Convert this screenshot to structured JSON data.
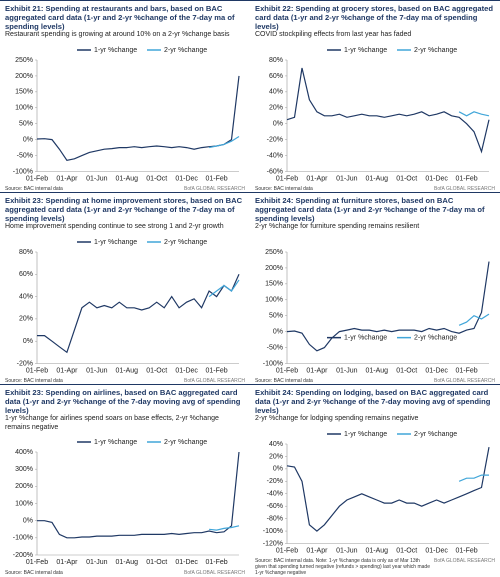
{
  "chart_data": [
    {
      "type": "line",
      "title": "Exhibit 21: Spending at restaurants and bars, based on BAC aggregated card data (1-yr and 2-yr %change of the 7-day ma of spending levels)",
      "subtitle": "Restaurant spending is growing at around 10% on a 2-yr %change basis",
      "source": "Source: BAC internal data",
      "brand": "BofA GLOBAL RESEARCH",
      "legend": "top",
      "categories": [
        "01-Feb",
        null,
        null,
        null,
        "01-Apr",
        null,
        null,
        null,
        "01-Jun",
        null,
        null,
        null,
        "01-Aug",
        null,
        null,
        null,
        "01-Oct",
        null,
        null,
        null,
        "01-Dec",
        null,
        null,
        null,
        "01-Feb",
        null,
        null,
        null
      ],
      "ylim": [
        -100,
        250
      ],
      "yticks": [
        {
          "value": -100,
          "label": "-100%"
        },
        {
          "value": -50,
          "label": "-50%"
        },
        {
          "value": 0,
          "label": "0%"
        },
        {
          "value": 50,
          "label": "50%"
        },
        {
          "value": 100,
          "label": "100%"
        },
        {
          "value": 150,
          "label": "150%"
        },
        {
          "value": 200,
          "label": "200%"
        },
        {
          "value": 250,
          "label": "250%"
        }
      ],
      "series": [
        {
          "name": "1-yr %change",
          "color": "#1f3864",
          "values": [
            2,
            3,
            0,
            -30,
            -65,
            -60,
            -50,
            -40,
            -35,
            -30,
            -28,
            -25,
            -25,
            -22,
            -25,
            -22,
            -20,
            -22,
            -25,
            -22,
            -25,
            -30,
            -25,
            -22,
            -20,
            -15,
            0,
            200
          ]
        },
        {
          "name": "2-yr %change",
          "color": "#41a6d9",
          "values": [
            null,
            null,
            null,
            null,
            null,
            null,
            null,
            null,
            null,
            null,
            null,
            null,
            null,
            null,
            null,
            null,
            null,
            null,
            null,
            null,
            null,
            null,
            null,
            -25,
            -20,
            -15,
            -5,
            10
          ]
        }
      ]
    },
    {
      "type": "line",
      "title": "Exhibit 22: Spending at grocery stores, based on BAC aggregated card data (1-yr and 2-yr %change of the 7-day ma of spending levels)",
      "subtitle": "COVID stockpiling effects from last year has faded",
      "source": "Source: BAC internal data",
      "brand": "BofA GLOBAL RESEARCH",
      "legend": "top",
      "categories": [
        "01-Feb",
        null,
        null,
        null,
        "01-Apr",
        null,
        null,
        null,
        "01-Jun",
        null,
        null,
        null,
        "01-Aug",
        null,
        null,
        null,
        "01-Oct",
        null,
        null,
        null,
        "01-Dec",
        null,
        null,
        null,
        "01-Feb",
        null,
        null,
        null
      ],
      "ylim": [
        -60,
        80
      ],
      "yticks": [
        {
          "value": -60,
          "label": "-60%"
        },
        {
          "value": -40,
          "label": "-40%"
        },
        {
          "value": -20,
          "label": "-20%"
        },
        {
          "value": 0,
          "label": "0%"
        },
        {
          "value": 20,
          "label": "20%"
        },
        {
          "value": 40,
          "label": "40%"
        },
        {
          "value": 60,
          "label": "60%"
        },
        {
          "value": 80,
          "label": "80%"
        }
      ],
      "series": [
        {
          "name": "1-yr %change",
          "color": "#1f3864",
          "values": [
            5,
            8,
            70,
            30,
            15,
            10,
            10,
            12,
            8,
            10,
            12,
            10,
            10,
            8,
            10,
            12,
            10,
            12,
            15,
            10,
            12,
            15,
            10,
            8,
            0,
            -10,
            -35,
            5
          ]
        },
        {
          "name": "2-yr %change",
          "color": "#41a6d9",
          "values": [
            null,
            null,
            null,
            null,
            null,
            null,
            null,
            null,
            null,
            null,
            null,
            null,
            null,
            null,
            null,
            null,
            null,
            null,
            null,
            null,
            null,
            null,
            null,
            15,
            10,
            15,
            12,
            10
          ]
        }
      ]
    },
    {
      "type": "line",
      "title": "Exhibit 23: Spending at home improvement stores, based on BAC aggregated card data (1-yr and 2-yr %change of the 7-day ma of spending levels)",
      "subtitle": "Home improvement spending continue to see strong 1 and 2-yr growth",
      "source": "Source: BAC internal data",
      "brand": "BofA GLOBAL RESEARCH",
      "legend": "top",
      "categories": [
        "01-Feb",
        null,
        null,
        null,
        "01-Apr",
        null,
        null,
        null,
        "01-Jun",
        null,
        null,
        null,
        "01-Aug",
        null,
        null,
        null,
        "01-Oct",
        null,
        null,
        null,
        "01-Dec",
        null,
        null,
        null,
        "01-Feb",
        null,
        null,
        null
      ],
      "ylim": [
        -20,
        80
      ],
      "yticks": [
        {
          "value": -20,
          "label": "-20%"
        },
        {
          "value": 0,
          "label": "0%"
        },
        {
          "value": 20,
          "label": "20%"
        },
        {
          "value": 40,
          "label": "40%"
        },
        {
          "value": 60,
          "label": "60%"
        },
        {
          "value": 80,
          "label": "80%"
        }
      ],
      "series": [
        {
          "name": "1-yr %change",
          "color": "#1f3864",
          "values": [
            5,
            5,
            0,
            -5,
            -10,
            10,
            30,
            35,
            30,
            32,
            30,
            35,
            30,
            30,
            28,
            30,
            35,
            30,
            40,
            30,
            35,
            38,
            30,
            45,
            40,
            50,
            45,
            60
          ]
        },
        {
          "name": "2-yr %change",
          "color": "#41a6d9",
          "values": [
            null,
            null,
            null,
            null,
            null,
            null,
            null,
            null,
            null,
            null,
            null,
            null,
            null,
            null,
            null,
            null,
            null,
            null,
            null,
            null,
            null,
            null,
            null,
            40,
            45,
            50,
            45,
            55
          ]
        }
      ]
    },
    {
      "type": "line",
      "title": "Exhibit 24: Spending at furniture stores, based on BAC aggregated card data (1-yr and 2-yr %change of the 7-day ma of spending levels)",
      "subtitle": "2-yr %change for furniture spending remains resilient",
      "source": "Source: BAC internal data",
      "brand": "BofA GLOBAL RESEARCH",
      "legend": "middle",
      "categories": [
        "01-Feb",
        null,
        null,
        null,
        "01-Apr",
        null,
        null,
        null,
        "01-Jun",
        null,
        null,
        null,
        "01-Aug",
        null,
        null,
        null,
        "01-Oct",
        null,
        null,
        null,
        "01-Dec",
        null,
        null,
        null,
        "01-Feb",
        null,
        null,
        null
      ],
      "ylim": [
        -100,
        250
      ],
      "yticks": [
        {
          "value": -100,
          "label": "-100%"
        },
        {
          "value": -50,
          "label": "-50%"
        },
        {
          "value": 0,
          "label": "0%"
        },
        {
          "value": 50,
          "label": "50%"
        },
        {
          "value": 100,
          "label": "100%"
        },
        {
          "value": 150,
          "label": "150%"
        },
        {
          "value": 200,
          "label": "200%"
        },
        {
          "value": 250,
          "label": "250%"
        }
      ],
      "series": [
        {
          "name": "1-yr %change",
          "color": "#1f3864",
          "values": [
            0,
            2,
            -5,
            -40,
            -60,
            -50,
            -20,
            0,
            5,
            10,
            5,
            5,
            0,
            5,
            0,
            5,
            5,
            5,
            0,
            10,
            5,
            10,
            0,
            -5,
            5,
            10,
            60,
            220
          ]
        },
        {
          "name": "2-yr %change",
          "color": "#41a6d9",
          "values": [
            null,
            null,
            null,
            null,
            null,
            null,
            null,
            null,
            null,
            null,
            null,
            null,
            null,
            null,
            null,
            null,
            null,
            null,
            null,
            null,
            null,
            null,
            null,
            20,
            30,
            50,
            40,
            55
          ]
        }
      ]
    },
    {
      "type": "line",
      "title": "Exhibit 23: Spending on airlines, based on BAC aggregated card data (1-yr and 2-yr %change of the 7-day moving avg of spending levels)",
      "subtitle": "1-yr %change for airlines spend soars on base effects, 2-yr %change remains negative",
      "source": "Source: BAC internal data",
      "brand": "BofA GLOBAL RESEARCH",
      "legend": "top",
      "categories": [
        "01-Feb",
        null,
        null,
        null,
        "01-Apr",
        null,
        null,
        null,
        "01-Jun",
        null,
        null,
        null,
        "01-Aug",
        null,
        null,
        null,
        "01-Oct",
        null,
        null,
        null,
        "01-Dec",
        null,
        null,
        null,
        "01-Feb",
        null,
        null,
        null
      ],
      "ylim": [
        -200,
        400
      ],
      "yticks": [
        {
          "value": -200,
          "label": "-200%"
        },
        {
          "value": -100,
          "label": "-100%"
        },
        {
          "value": 0,
          "label": "0%"
        },
        {
          "value": 100,
          "label": "100%"
        },
        {
          "value": 200,
          "label": "200%"
        },
        {
          "value": 300,
          "label": "300%"
        },
        {
          "value": 400,
          "label": "400%"
        }
      ],
      "series": [
        {
          "name": "1-yr %change",
          "color": "#1f3864",
          "values": [
            0,
            0,
            -10,
            -80,
            -100,
            -100,
            -95,
            -95,
            -90,
            -90,
            -90,
            -85,
            -85,
            -85,
            -80,
            -80,
            -80,
            -80,
            -75,
            -80,
            -75,
            -70,
            -70,
            -60,
            -70,
            -65,
            -30,
            400
          ]
        },
        {
          "name": "2-yr %change",
          "color": "#41a6d9",
          "values": [
            null,
            null,
            null,
            null,
            null,
            null,
            null,
            null,
            null,
            null,
            null,
            null,
            null,
            null,
            null,
            null,
            null,
            null,
            null,
            null,
            null,
            null,
            null,
            -50,
            -55,
            -45,
            -40,
            -30
          ]
        }
      ]
    },
    {
      "type": "line",
      "title": "Exhibit 24: Spending on lodging, based on BAC aggregated card data (1-yr and 2-yr %change of the 7-day moving avg of spending levels)",
      "subtitle": "2-yr %change for lodging spending remains negative",
      "source": "Source: BAC internal data. Note: 1-yr %change data is only as of Mar 13th given that spending turned negative (refunds > spending) last year which made 1-yr %change negative",
      "brand": "BofA GLOBAL RESEARCH",
      "legend": "top",
      "categories": [
        "01-Feb",
        null,
        null,
        null,
        "01-Apr",
        null,
        null,
        null,
        "01-Jun",
        null,
        null,
        null,
        "01-Aug",
        null,
        null,
        null,
        "01-Oct",
        null,
        null,
        null,
        "01-Dec",
        null,
        null,
        null,
        "01-Feb",
        null,
        null,
        null
      ],
      "ylim": [
        -120,
        40
      ],
      "yticks": [
        {
          "value": -120,
          "label": "-120%"
        },
        {
          "value": -100,
          "label": "-100%"
        },
        {
          "value": -80,
          "label": "-80%"
        },
        {
          "value": -60,
          "label": "-60%"
        },
        {
          "value": -40,
          "label": "-40%"
        },
        {
          "value": -20,
          "label": "-20%"
        },
        {
          "value": 0,
          "label": "0%"
        },
        {
          "value": 20,
          "label": "20%"
        },
        {
          "value": 40,
          "label": "40%"
        }
      ],
      "series": [
        {
          "name": "1-yr %change",
          "color": "#1f3864",
          "values": [
            5,
            3,
            -20,
            -90,
            -100,
            -90,
            -75,
            -60,
            -50,
            -45,
            -40,
            -45,
            -50,
            -55,
            -55,
            -50,
            -55,
            -55,
            -60,
            -55,
            -50,
            -55,
            -50,
            -45,
            -40,
            -35,
            -30,
            35
          ]
        },
        {
          "name": "2-yr %change",
          "color": "#41a6d9",
          "values": [
            null,
            null,
            null,
            null,
            null,
            null,
            null,
            null,
            null,
            null,
            null,
            null,
            null,
            null,
            null,
            null,
            null,
            null,
            null,
            null,
            null,
            null,
            null,
            -20,
            -15,
            -15,
            -10,
            -10
          ]
        }
      ]
    }
  ]
}
